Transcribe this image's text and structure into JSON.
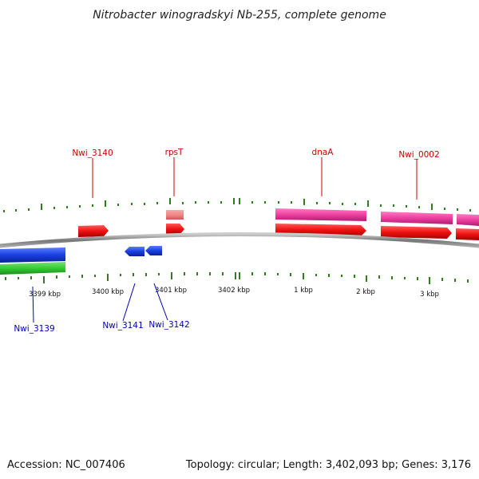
{
  "title": "Nitrobacter winogradskyi Nb-255, complete genome",
  "footer": {
    "accession": "Accession: NC_007406",
    "summary": "Topology: circular; Length: 3,402,093 bp; Genes: 3,176"
  },
  "colors": {
    "backbone": "#888888",
    "tick": "#2e7d1f",
    "gene_red": "#ee1111",
    "gene_pink": "#ee3fa0",
    "gene_lightred": "#f08080",
    "gene_blue": "#1a3fe0",
    "gene_green": "#33cc33",
    "label_red": "#cc0000",
    "label_blue": "#0000bb"
  },
  "position_labels": [
    "3399 kbp",
    "3400 kbp",
    "3401 kbp",
    "3402 kbp",
    "1 kbp",
    "2 kbp",
    "3 kbp"
  ],
  "gene_labels": {
    "top": [
      "Nwi_3140",
      "rpsT",
      "dnaA",
      "Nwi_0002"
    ],
    "bottom": [
      "Nwi_3139",
      "Nwi_3141",
      "Nwi_3142"
    ]
  }
}
